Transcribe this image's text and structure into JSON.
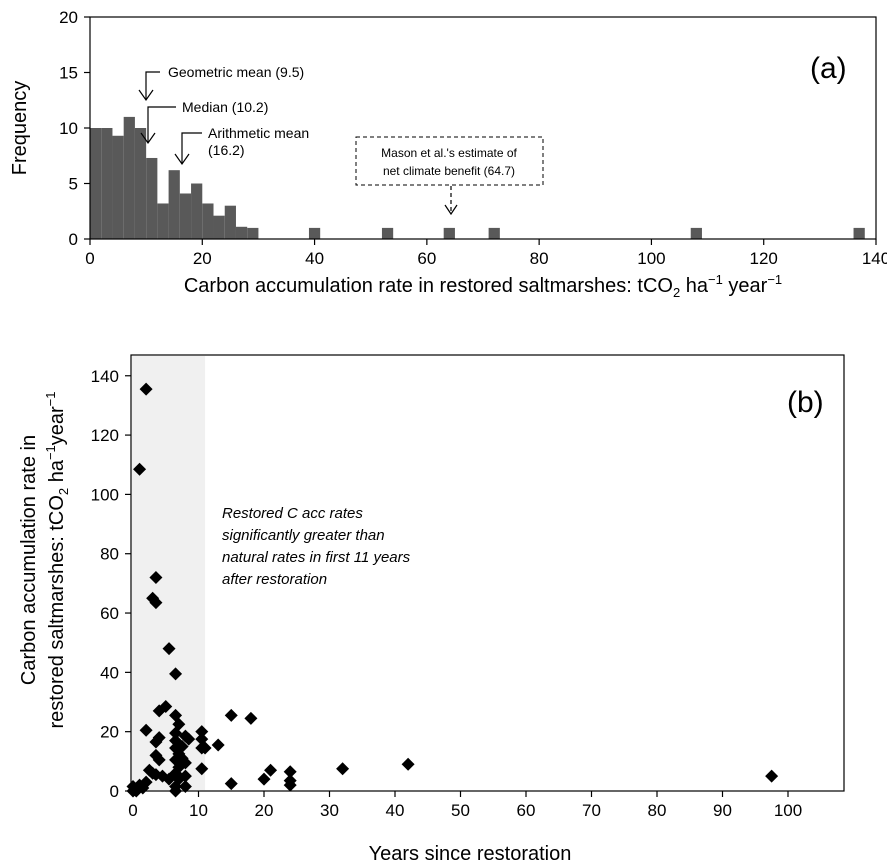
{
  "chart_data": [
    {
      "type": "bar",
      "panel_label": "(a)",
      "xlabel": {
        "main": "Carbon accumulation rate in restored saltmarshes: tCO",
        "sub": "2",
        "tail": " ha",
        "sup1": "−1",
        "mid": " year",
        "sup2": "−1"
      },
      "ylabel": "Frequency",
      "xlim": [
        0,
        140
      ],
      "ylim": [
        0,
        20
      ],
      "xticks": [
        0,
        20,
        40,
        60,
        80,
        100,
        120,
        140
      ],
      "yticks": [
        0,
        5,
        10,
        15,
        20
      ],
      "bin_width": 2,
      "bars": [
        {
          "x0": 0,
          "count": 10
        },
        {
          "x0": 2,
          "count": 10
        },
        {
          "x0": 4,
          "count": 9.3
        },
        {
          "x0": 6,
          "count": 11
        },
        {
          "x0": 8,
          "count": 10
        },
        {
          "x0": 10,
          "count": 7.3
        },
        {
          "x0": 12,
          "count": 3.2
        },
        {
          "x0": 14,
          "count": 6.2
        },
        {
          "x0": 16,
          "count": 4.1
        },
        {
          "x0": 18,
          "count": 5
        },
        {
          "x0": 20,
          "count": 3.2
        },
        {
          "x0": 22,
          "count": 2.1
        },
        {
          "x0": 24,
          "count": 3
        },
        {
          "x0": 26,
          "count": 1.1
        },
        {
          "x0": 28,
          "count": 1
        },
        {
          "x0": 39,
          "count": 1
        },
        {
          "x0": 52,
          "count": 1
        },
        {
          "x0": 63,
          "count": 1
        },
        {
          "x0": 71,
          "count": 1
        },
        {
          "x0": 107,
          "count": 1
        },
        {
          "x0": 136,
          "count": 1
        }
      ],
      "annotations": [
        {
          "text": "Geometric mean (9.5)",
          "x": 9.5
        },
        {
          "text": "Median (10.2)",
          "x": 10.2
        },
        {
          "text1": "Arithmetic mean",
          "text2": "(16.2)",
          "x": 16.2
        },
        {
          "text1": "Mason et al.'s estimate of",
          "text2": "net climate benefit (64.7)",
          "x": 64.7
        }
      ],
      "colors": {
        "bar": "#595959"
      }
    },
    {
      "type": "scatter",
      "panel_label": "(b)",
      "xlabel": "Years since restoration",
      "ylabel": {
        "line1": "Carbon accumulation rate in",
        "line2": "restored saltmarshes: tCO",
        "sub": "2",
        "tail": " ha",
        "sup1": "−1",
        "mid": "year",
        "sup2": "−1"
      },
      "xlim": [
        -1,
        109
      ],
      "ylim": [
        0,
        147
      ],
      "xticks": [
        0,
        10,
        20,
        30,
        40,
        50,
        60,
        70,
        80,
        90,
        100
      ],
      "yticks": [
        0,
        20,
        40,
        60,
        80,
        100,
        120,
        140
      ],
      "shaded_region": [
        0,
        11
      ],
      "annotation": [
        "Restored C acc rates",
        "significantly greater than",
        "natural rates in first 11 years",
        "after restoration"
      ],
      "colors": {
        "marker": "#000000",
        "shade": "#f0f0f0"
      },
      "points": [
        [
          2,
          135.5
        ],
        [
          1,
          108.5
        ],
        [
          3.5,
          72
        ],
        [
          3,
          65
        ],
        [
          3.5,
          63.5
        ],
        [
          5.5,
          48
        ],
        [
          6.5,
          39.5
        ],
        [
          2,
          20.5
        ],
        [
          4,
          27
        ],
        [
          5,
          28.5
        ],
        [
          6.5,
          25.5
        ],
        [
          7,
          22.5
        ],
        [
          6.5,
          19.5
        ],
        [
          6.5,
          17
        ],
        [
          6.5,
          14.5
        ],
        [
          7,
          12.5
        ],
        [
          6.5,
          10.5
        ],
        [
          7,
          8
        ],
        [
          6.5,
          6
        ],
        [
          7,
          4
        ],
        [
          6.5,
          1.5
        ],
        [
          6.5,
          0
        ],
        [
          4,
          18
        ],
        [
          3.5,
          16.5
        ],
        [
          3.5,
          12
        ],
        [
          3.5,
          5.5
        ],
        [
          4.5,
          5
        ],
        [
          5.5,
          4
        ],
        [
          4,
          10.5
        ],
        [
          3,
          6
        ],
        [
          2.5,
          7
        ],
        [
          2,
          3
        ],
        [
          1,
          2
        ],
        [
          0,
          1.5
        ],
        [
          0,
          0
        ],
        [
          0.5,
          0
        ],
        [
          1.5,
          1
        ],
        [
          8,
          18.5
        ],
        [
          8.5,
          17.5
        ],
        [
          7.5,
          15
        ],
        [
          7.5,
          11
        ],
        [
          8,
          9.5
        ],
        [
          8,
          5
        ],
        [
          8,
          1.5
        ],
        [
          10.5,
          20
        ],
        [
          10.5,
          17.5
        ],
        [
          11,
          14.5
        ],
        [
          10.5,
          14.5
        ],
        [
          10.5,
          7.5
        ],
        [
          13,
          15.5
        ],
        [
          15,
          25.5
        ],
        [
          18,
          24.5
        ],
        [
          15,
          2.5
        ],
        [
          20,
          4
        ],
        [
          21,
          7
        ],
        [
          24,
          6.5
        ],
        [
          24,
          3.5
        ],
        [
          24,
          2
        ],
        [
          32,
          7.5
        ],
        [
          42,
          9
        ],
        [
          97.5,
          5
        ]
      ]
    }
  ]
}
